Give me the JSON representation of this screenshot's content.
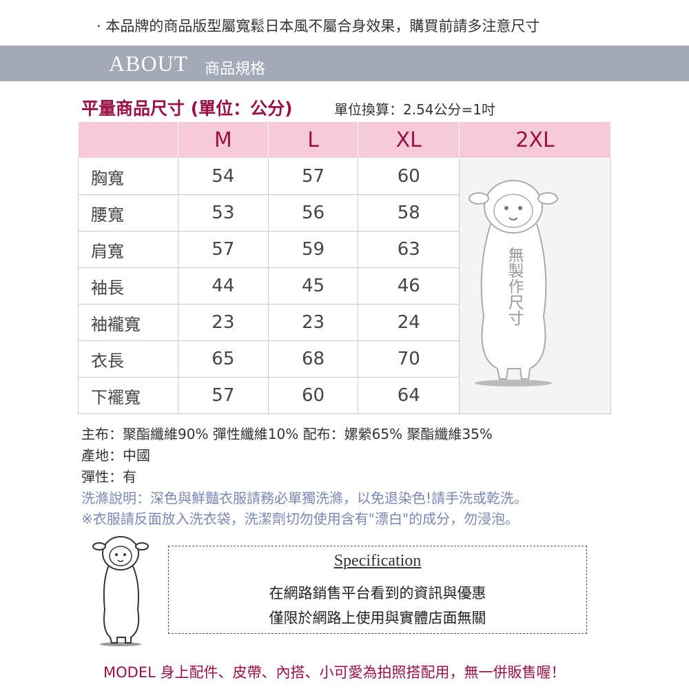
{
  "notice": "· 本品牌的商品版型屬寬鬆日本風不屬合身效果，購買前請多注意尺寸",
  "section": {
    "about": "ABOUT",
    "subtitle": "商品規格"
  },
  "size_table": {
    "title": "平量商品尺寸 (單位：公分)",
    "conversion": "單位換算：2.54公分=1吋",
    "columns": [
      "M",
      "L",
      "XL",
      "2XL"
    ],
    "rows": [
      {
        "label": "胸寬",
        "values": [
          "54",
          "57",
          "60"
        ]
      },
      {
        "label": "腰寬",
        "values": [
          "53",
          "56",
          "58"
        ]
      },
      {
        "label": "肩寬",
        "values": [
          "57",
          "59",
          "63"
        ]
      },
      {
        "label": "袖長",
        "values": [
          "44",
          "45",
          "46"
        ]
      },
      {
        "label": "袖襱寬",
        "values": [
          "23",
          "23",
          "24"
        ]
      },
      {
        "label": "衣長",
        "values": [
          "65",
          "68",
          "70"
        ]
      },
      {
        "label": "下襬寬",
        "values": [
          "57",
          "60",
          "64"
        ]
      }
    ],
    "unavailable_note": "無製作尺寸"
  },
  "info": {
    "material": "主布：聚酯纖維90%  彈性纖維10%   配布：嫘縈65%  聚酯纖維35%",
    "origin": "產地：中國",
    "elasticity": "彈性：有",
    "wash1": "洗滌說明：深色與鮮豔衣服請務必單獨洗滌，以免退染色!請手洗或乾洗。",
    "wash2": "※衣服請反面放入洗衣袋，洗潔劑切勿使用含有\"漂白\"的成分，勿浸泡。"
  },
  "spec": {
    "title": "Specification",
    "line1": "在網路銷售平台看到的資訊與優惠",
    "line2": "僅限於網路上使用與實體店面無關"
  },
  "footer": "MODEL 身上配件、皮帶、內搭、小可愛為拍照搭配用，無一併販售喔！",
  "colors": {
    "accent": "#9b1046",
    "band": "#a3a9b7",
    "header_bg": "#f7cad8",
    "wash_text": "#7b86b8"
  }
}
